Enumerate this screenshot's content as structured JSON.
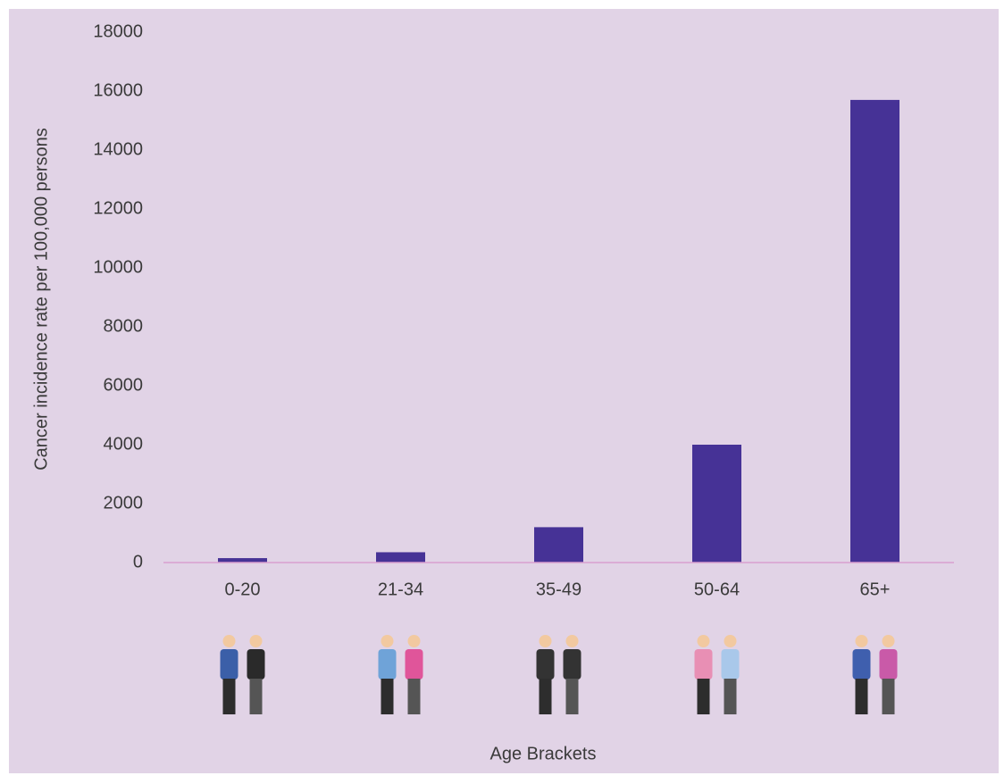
{
  "chart_data": {
    "type": "bar",
    "x_label": "Age Brackets",
    "y_label": "Cancer incidence rate per 100,000 persons",
    "categories": [
      "0-20",
      "21-34",
      "35-49",
      "50-64",
      "65+"
    ],
    "values": [
      150,
      350,
      1200,
      4000,
      15700
    ],
    "color": "#463296",
    "ylim": [
      0,
      18000
    ],
    "yticks": [
      0,
      2000,
      4000,
      6000,
      8000,
      10000,
      12000,
      14000,
      16000,
      18000
    ],
    "grid": false
  }
}
